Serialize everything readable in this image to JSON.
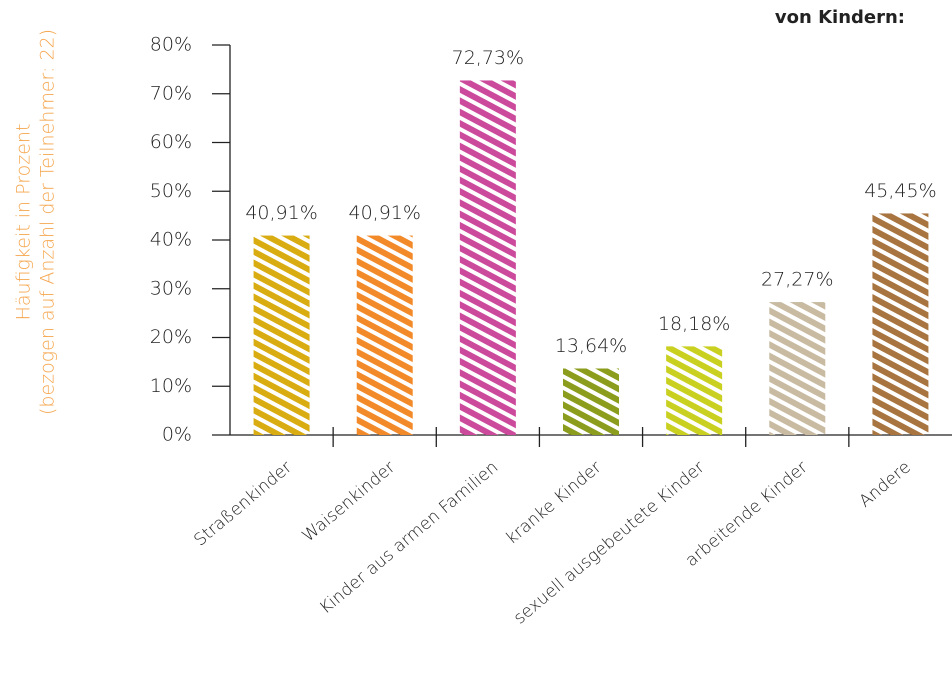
{
  "chart_data": {
    "type": "bar",
    "title": "von Kindern:",
    "ylabel": [
      "Häufigkeit in Prozent",
      "(bezogen auf Anzahl der Teilnehmer: 22)"
    ],
    "categories": [
      "Straßenkinder",
      "Waisenkinder",
      "Kinder aus armen Familien",
      "kranke Kinder",
      "sexuell ausgebeutete Kinder",
      "arbeitende Kinder",
      "Andere"
    ],
    "values": [
      40.91,
      40.91,
      72.73,
      13.64,
      18.18,
      27.27,
      45.45
    ],
    "value_labels": [
      "40,91%",
      "40,91%",
      "72,73%",
      "13,64%",
      "18,18%",
      "27,27%",
      "45,45%"
    ],
    "colors": [
      "#d9ac12",
      "#f28a2a",
      "#cc4a9c",
      "#8c9c1c",
      "#c9d020",
      "#c9bba2",
      "#a8743f"
    ],
    "ylim": [
      0,
      80
    ],
    "yticks": [
      {
        "value": 0,
        "label": "0%"
      },
      {
        "value": 10,
        "label": "10%"
      },
      {
        "value": 20,
        "label": "20%"
      },
      {
        "value": 30,
        "label": "30%"
      },
      {
        "value": 40,
        "label": "40%"
      },
      {
        "value": 50,
        "label": "50%"
      },
      {
        "value": 60,
        "label": "60%"
      },
      {
        "value": 70,
        "label": "70%"
      },
      {
        "value": 80,
        "label": "80%"
      }
    ]
  }
}
